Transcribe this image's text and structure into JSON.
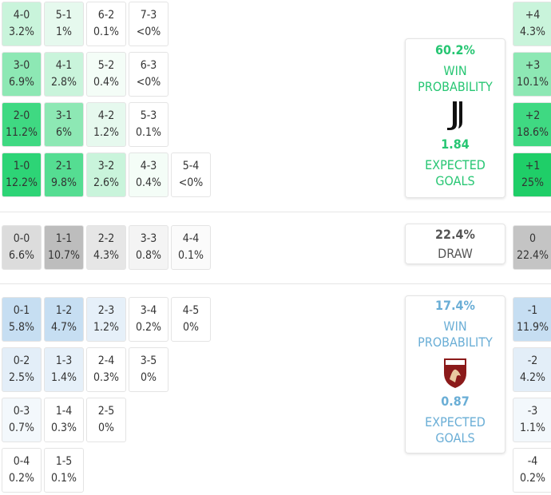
{
  "sections": {
    "home": {
      "rows": [
        [
          {
            "score": "4-0",
            "pct": "3.2%",
            "color": "#c9f4db"
          },
          {
            "score": "5-1",
            "pct": "1%",
            "color": "#e6f9ee"
          },
          {
            "score": "6-2",
            "pct": "0.1%",
            "color": "#ffffff"
          },
          {
            "score": "7-3",
            "pct": "<0%",
            "color": "#ffffff"
          }
        ],
        [
          {
            "score": "3-0",
            "pct": "6.9%",
            "color": "#8de8b4"
          },
          {
            "score": "4-1",
            "pct": "2.8%",
            "color": "#c9f4db"
          },
          {
            "score": "5-2",
            "pct": "0.4%",
            "color": "#f4fdf7"
          },
          {
            "score": "6-3",
            "pct": "<0%",
            "color": "#ffffff"
          }
        ],
        [
          {
            "score": "2-0",
            "pct": "11.2%",
            "color": "#3fd982"
          },
          {
            "score": "3-1",
            "pct": "6%",
            "color": "#8de8b4"
          },
          {
            "score": "4-2",
            "pct": "1.2%",
            "color": "#e6f9ee"
          },
          {
            "score": "5-3",
            "pct": "0.1%",
            "color": "#ffffff"
          }
        ],
        [
          {
            "score": "1-0",
            "pct": "12.2%",
            "color": "#2dd476"
          },
          {
            "score": "2-1",
            "pct": "9.8%",
            "color": "#55dd92"
          },
          {
            "score": "3-2",
            "pct": "2.6%",
            "color": "#c9f4db"
          },
          {
            "score": "4-3",
            "pct": "0.4%",
            "color": "#f4fdf7"
          },
          {
            "score": "5-4",
            "pct": "<0%",
            "color": "#ffffff"
          }
        ]
      ],
      "margins": [
        {
          "label": "+4",
          "pct": "4.3%",
          "color": "#c9f4db"
        },
        {
          "label": "+3",
          "pct": "10.1%",
          "color": "#8de8b4"
        },
        {
          "label": "+2",
          "pct": "18.6%",
          "color": "#3fd982"
        },
        {
          "label": "+1",
          "pct": "25%",
          "color": "#1fce68"
        }
      ],
      "card": {
        "win_pct": "60.2%",
        "win_label": "WIN PROBABILITY",
        "xg": "1.84",
        "xg_label": "EXPECTED GOALS",
        "color": "#27c673"
      }
    },
    "draw": {
      "rows": [
        [
          {
            "score": "0-0",
            "pct": "6.6%",
            "color": "#dcdcdc"
          },
          {
            "score": "1-1",
            "pct": "10.7%",
            "color": "#bdbdbd"
          },
          {
            "score": "2-2",
            "pct": "4.3%",
            "color": "#e6e6e6"
          },
          {
            "score": "3-3",
            "pct": "0.8%",
            "color": "#f4f4f4"
          },
          {
            "score": "4-4",
            "pct": "0.1%",
            "color": "#fbfbfb"
          }
        ]
      ],
      "margins": [
        {
          "label": "0",
          "pct": "22.4%",
          "color": "#c4c4c4"
        }
      ],
      "card": {
        "pct": "22.4%",
        "label": "DRAW",
        "color": "#555555"
      }
    },
    "away": {
      "rows": [
        [
          {
            "score": "0-1",
            "pct": "5.8%",
            "color": "#c6def2"
          },
          {
            "score": "1-2",
            "pct": "4.7%",
            "color": "#c6def2"
          },
          {
            "score": "2-3",
            "pct": "1.2%",
            "color": "#e6f0f9"
          },
          {
            "score": "3-4",
            "pct": "0.2%",
            "color": "#ffffff"
          },
          {
            "score": "4-5",
            "pct": "0%",
            "color": "#ffffff"
          }
        ],
        [
          {
            "score": "0-2",
            "pct": "2.5%",
            "color": "#e3eef8"
          },
          {
            "score": "1-3",
            "pct": "1.4%",
            "color": "#e6f0f9"
          },
          {
            "score": "2-4",
            "pct": "0.3%",
            "color": "#ffffff"
          },
          {
            "score": "3-5",
            "pct": "0%",
            "color": "#ffffff"
          }
        ],
        [
          {
            "score": "0-3",
            "pct": "0.7%",
            "color": "#f3f8fc"
          },
          {
            "score": "1-4",
            "pct": "0.3%",
            "color": "#ffffff"
          },
          {
            "score": "2-5",
            "pct": "0%",
            "color": "#ffffff"
          }
        ],
        [
          {
            "score": "0-4",
            "pct": "0.2%",
            "color": "#ffffff"
          },
          {
            "score": "1-5",
            "pct": "0.1%",
            "color": "#ffffff"
          }
        ]
      ],
      "margins": [
        {
          "label": "-1",
          "pct": "11.9%",
          "color": "#c6def2"
        },
        {
          "label": "-2",
          "pct": "4.2%",
          "color": "#e3eef8"
        },
        {
          "label": "-3",
          "pct": "1.1%",
          "color": "#f3f8fc"
        },
        {
          "label": "-4",
          "pct": "0.2%",
          "color": "#ffffff"
        }
      ],
      "card": {
        "win_pct": "17.4%",
        "win_label": "WIN PROBABILITY",
        "xg": "0.87",
        "xg_label": "EXPECTED GOALS",
        "color": "#6aaed6"
      }
    }
  }
}
